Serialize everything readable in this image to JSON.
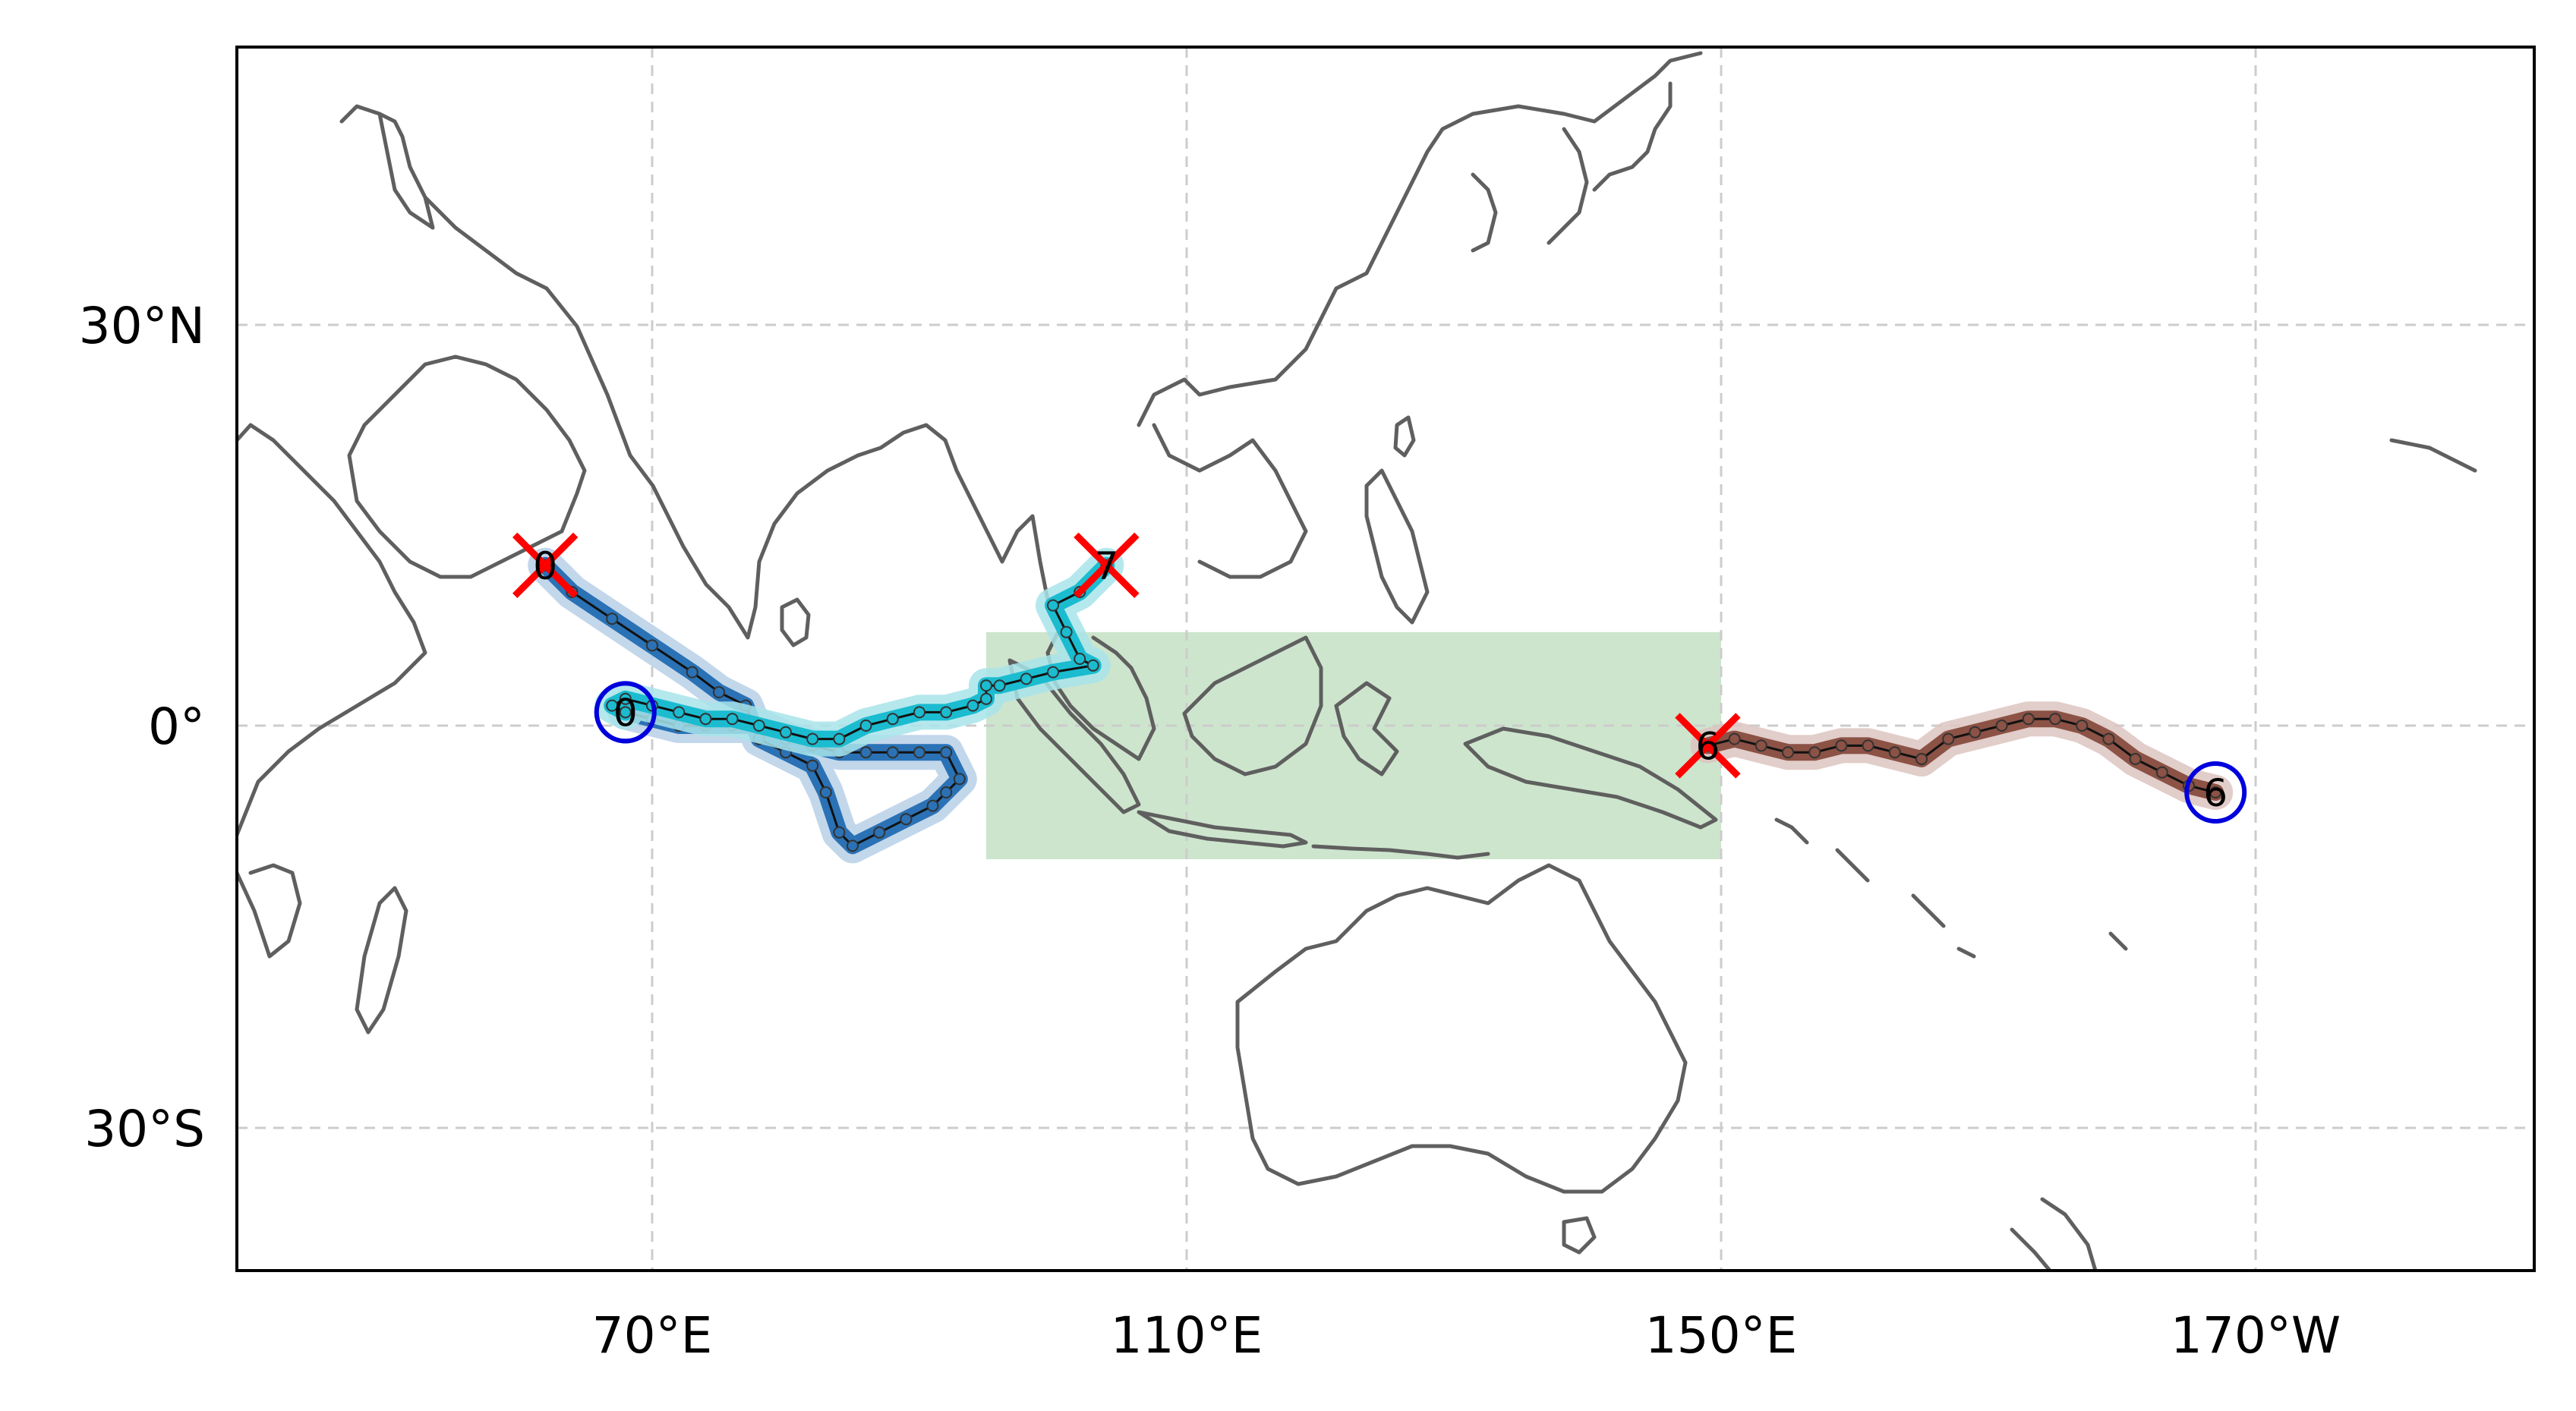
{
  "figure": {
    "x_ticks": [
      "70°E",
      "110°E",
      "150°E",
      "170°W"
    ],
    "y_ticks": [
      "30°N",
      "0°",
      "30°S"
    ]
  },
  "shaded_region": {
    "color": "#cde5cd",
    "lon_range": [
      95,
      150
    ],
    "lat_range": [
      -10,
      7
    ]
  },
  "tracks": [
    {
      "id": "track-a",
      "color": "#2a72b5",
      "halo_color": "#b8d0e8",
      "start_label": "0",
      "end_label": "0",
      "points": [
        [
          62,
          12
        ],
        [
          64,
          10
        ],
        [
          67,
          8
        ],
        [
          70,
          6
        ],
        [
          73,
          4
        ],
        [
          75,
          2.5
        ],
        [
          77,
          1.5
        ],
        [
          78,
          -1
        ],
        [
          80,
          -2
        ],
        [
          82,
          -3
        ],
        [
          83,
          -5
        ],
        [
          84,
          -8
        ],
        [
          85,
          -9
        ],
        [
          87,
          -8
        ],
        [
          89,
          -7
        ],
        [
          91,
          -6
        ],
        [
          92,
          -5
        ],
        [
          93,
          -4
        ],
        [
          92,
          -2
        ],
        [
          90,
          -2
        ],
        [
          88,
          -2
        ],
        [
          86,
          -2
        ],
        [
          84,
          -2
        ],
        [
          82,
          -1.5
        ],
        [
          80,
          -1
        ],
        [
          78,
          0
        ],
        [
          76,
          0
        ],
        [
          74,
          0
        ],
        [
          72,
          0
        ],
        [
          70,
          0.5
        ],
        [
          68,
          1
        ]
      ]
    },
    {
      "id": "track-b",
      "color": "#1bbcd0",
      "halo_color": "#a8e4ea",
      "start_label": "7",
      "end_label": "0",
      "points": [
        [
          104,
          12
        ],
        [
          102,
          10
        ],
        [
          100,
          9
        ],
        [
          101,
          7
        ],
        [
          102,
          5
        ],
        [
          103,
          4.5
        ],
        [
          100,
          4
        ],
        [
          98,
          3.5
        ],
        [
          96,
          3
        ],
        [
          95,
          3
        ],
        [
          95,
          2
        ],
        [
          94,
          1.5
        ],
        [
          92,
          1
        ],
        [
          90,
          1
        ],
        [
          88,
          0.5
        ],
        [
          86,
          0
        ],
        [
          84,
          -1
        ],
        [
          82,
          -1
        ],
        [
          80,
          -0.5
        ],
        [
          78,
          0
        ],
        [
          76,
          0.5
        ],
        [
          74,
          0.5
        ],
        [
          72,
          1
        ],
        [
          70,
          1.5
        ],
        [
          68,
          2
        ],
        [
          67,
          1.5
        ],
        [
          68,
          1
        ]
      ]
    },
    {
      "id": "track-c",
      "color": "#8b5245",
      "halo_color": "#dcc4bf",
      "start_label": "6",
      "end_label": "6",
      "points": [
        [
          149,
          -1.5
        ],
        [
          151,
          -1
        ],
        [
          153,
          -1.5
        ],
        [
          155,
          -2
        ],
        [
          157,
          -2
        ],
        [
          159,
          -1.5
        ],
        [
          161,
          -1.5
        ],
        [
          163,
          -2
        ],
        [
          165,
          -2.5
        ],
        [
          167,
          -1
        ],
        [
          169,
          -0.5
        ],
        [
          171,
          0
        ],
        [
          173,
          0.5
        ],
        [
          175,
          0.5
        ],
        [
          177,
          0
        ],
        [
          179,
          -1
        ],
        [
          181,
          -2.5
        ],
        [
          183,
          -3.5
        ],
        [
          185,
          -4.5
        ],
        [
          187,
          -5
        ]
      ]
    }
  ],
  "markers": {
    "start_color": "#0000dd",
    "end_color": "#ff0000"
  }
}
